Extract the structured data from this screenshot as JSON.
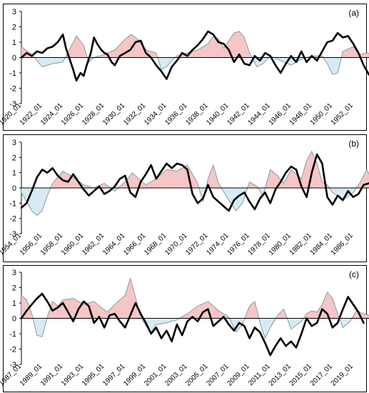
{
  "figure": {
    "panels": [
      "(a)",
      "(b)",
      "(c)"
    ]
  },
  "chart_data": [
    {
      "type": "area",
      "panel_label": "(a)",
      "ylim": [
        -3,
        3
      ],
      "yticks": [
        3,
        2,
        1,
        0,
        -1,
        -2,
        -3
      ],
      "xlim": [
        1920,
        1954
      ],
      "xtick_labels": [
        "1920_01",
        "1922_01",
        "1924_01",
        "1926_01",
        "1928_01",
        "1930_01",
        "1932_01",
        "1934_01",
        "1936_01",
        "1938_01",
        "1940_01",
        "1942_01",
        "1944_01",
        "1946_01",
        "1948_01",
        "1950_01",
        "1952_01"
      ],
      "xtick_values": [
        1920,
        1922,
        1924,
        1926,
        1928,
        1930,
        1932,
        1934,
        1936,
        1938,
        1940,
        1942,
        1944,
        1946,
        1948,
        1950,
        1952
      ],
      "series": [
        {
          "style": "shaded-area",
          "x": [
            1920,
            1921,
            1922,
            1923,
            1924,
            1924.7,
            1925.3,
            1926,
            1926.5,
            1927,
            1927.5,
            1928,
            1929,
            1930,
            1930.6,
            1931.2,
            1932,
            1933,
            1933.5,
            1934,
            1934.5,
            1935,
            1936,
            1937,
            1938,
            1938.5,
            1939,
            1939.5,
            1940,
            1940.5,
            1941,
            1941.5,
            1942,
            1942.7,
            1943.3,
            1944,
            1945,
            1946,
            1947,
            1948,
            1949,
            1949.5,
            1950,
            1950.5,
            1951,
            1952,
            1952.7,
            1953.3,
            1954
          ],
          "y": [
            0.7,
            0.2,
            -0.6,
            -0.4,
            -0.3,
            0.6,
            1.4,
            0.8,
            -0.3,
            0,
            0.1,
            0.2,
            0.5,
            1.2,
            1.5,
            1.2,
            0.5,
            0.3,
            -0.8,
            -0.6,
            -0.2,
            0.1,
            0.3,
            0.5,
            0.9,
            1.4,
            1.2,
            0.6,
            1.1,
            1.6,
            1.7,
            1.3,
            0.3,
            -0.6,
            -0.4,
            0.1,
            -0.2,
            -0.5,
            -0.1,
            0.1,
            0.1,
            -0.4,
            -1.1,
            -1,
            0.4,
            0.7,
            0.2,
            0.3,
            0.2
          ]
        },
        {
          "style": "bold-line",
          "x": [
            1920,
            1920.5,
            1921,
            1921.5,
            1922,
            1922.5,
            1923,
            1923.5,
            1924,
            1924.3,
            1924.7,
            1925,
            1925.3,
            1925.7,
            1926,
            1926.3,
            1926.7,
            1927,
            1927.3,
            1927.7,
            1928,
            1928.3,
            1928.7,
            1929,
            1929.5,
            1930,
            1930.5,
            1931,
            1931.5,
            1932,
            1932.5,
            1933,
            1933.5,
            1934,
            1934.5,
            1935,
            1935.5,
            1936,
            1936.5,
            1937,
            1937.5,
            1938,
            1938.5,
            1939,
            1939.5,
            1940,
            1940.5,
            1941,
            1941.5,
            1942,
            1942.5,
            1943,
            1943.5,
            1944,
            1944.5,
            1945,
            1945.5,
            1946,
            1946.5,
            1947,
            1947.5,
            1948,
            1948.5,
            1949,
            1949.5,
            1950,
            1950.5,
            1951,
            1951.5,
            1952,
            1952.5,
            1953,
            1953.5,
            1954
          ],
          "y": [
            0,
            0.3,
            0.1,
            0.4,
            0.3,
            0.6,
            0.7,
            1,
            1.5,
            0.6,
            -0.2,
            -0.8,
            -1.5,
            -1,
            -1.2,
            -0.5,
            0.3,
            1.3,
            0.9,
            0.5,
            0.3,
            0.2,
            -0.3,
            -0.5,
            0.1,
            0.3,
            0.5,
            1,
            1.1,
            0.3,
            0,
            -0.5,
            -0.9,
            -1.4,
            -0.6,
            -0.2,
            0.3,
            0.1,
            0.5,
            0.8,
            1.2,
            1.7,
            1.5,
            1,
            0.9,
            0.5,
            -0.3,
            0.2,
            -0.4,
            -0.5,
            0.1,
            -0.2,
            0.3,
            0.1,
            -0.5,
            -1,
            -0.4,
            0.1,
            -0.3,
            0.4,
            -0.3,
            0.1,
            -0.2,
            0.4,
            1,
            1.1,
            1.6,
            1.3,
            1.4,
            0.9,
            0.3,
            -0.5,
            -1.1,
            -1.5
          ]
        }
      ]
    },
    {
      "type": "area",
      "panel_label": "(b)",
      "ylim": [
        -3,
        3
      ],
      "yticks": [
        3,
        2,
        1,
        0,
        -1,
        -2,
        -3
      ],
      "xlim": [
        1954,
        1988
      ],
      "xtick_labels": [
        "1954_01",
        "1956_01",
        "1958_01",
        "1960_01",
        "1962_01",
        "1964_01",
        "1966_01",
        "1968_01",
        "1970_01",
        "1972_01",
        "1974_01",
        "1976_01",
        "1978_01",
        "1980_01",
        "1982_01",
        "1984_01",
        "1986_01"
      ],
      "xtick_values": [
        1954,
        1956,
        1958,
        1960,
        1962,
        1964,
        1966,
        1968,
        1970,
        1972,
        1974,
        1976,
        1978,
        1980,
        1982,
        1984,
        1986
      ],
      "series": [
        {
          "style": "shaded-area",
          "x": [
            1954,
            1955,
            1955.5,
            1956,
            1956.5,
            1957,
            1958,
            1959,
            1960,
            1961,
            1962,
            1963,
            1964,
            1964.7,
            1965.3,
            1966,
            1967,
            1968,
            1969,
            1970,
            1971,
            1971.5,
            1972,
            1972.5,
            1973,
            1974,
            1974.7,
            1975.3,
            1976,
            1976.7,
            1977.3,
            1978,
            1978.7,
            1979.3,
            1980,
            1981,
            1981.5,
            1982,
            1982.5,
            1983,
            1983.5,
            1984,
            1985,
            1986,
            1986.7,
            1987.3,
            1988
          ],
          "y": [
            -0.3,
            -1.5,
            -1.8,
            -1.5,
            -0.5,
            0.3,
            1.1,
            0.7,
            0.2,
            0,
            0.3,
            -0.2,
            0.4,
            1,
            0.6,
            0.2,
            0.6,
            1.2,
            1.1,
            1.5,
            0.3,
            -0.9,
            0.6,
            1.5,
            0.3,
            -0.8,
            -1.5,
            -1,
            0.4,
            0.1,
            -0.5,
            1.2,
            0.8,
            0.3,
            1.2,
            0.6,
            1.8,
            2.4,
            1.6,
            0.4,
            0.2,
            -0.3,
            -0.8,
            -0.3,
            0.4,
            1.2,
            0.3
          ]
        },
        {
          "style": "bold-line",
          "x": [
            1954,
            1954.5,
            1955,
            1955.5,
            1956,
            1956.5,
            1957,
            1957.5,
            1958,
            1958.5,
            1959,
            1959.5,
            1960,
            1960.5,
            1961,
            1961.5,
            1962,
            1962.5,
            1963,
            1963.5,
            1964,
            1964.5,
            1965,
            1965.5,
            1966,
            1966.5,
            1967,
            1967.5,
            1968,
            1968.5,
            1969,
            1969.5,
            1970,
            1970.5,
            1971,
            1971.5,
            1972,
            1972.5,
            1973,
            1973.5,
            1974,
            1974.5,
            1975,
            1975.5,
            1976,
            1976.5,
            1977,
            1977.5,
            1978,
            1978.5,
            1979,
            1979.5,
            1980,
            1980.5,
            1981,
            1981.5,
            1982,
            1982.5,
            1983,
            1983.5,
            1984,
            1984.5,
            1985,
            1985.5,
            1986,
            1986.5,
            1987,
            1987.5,
            1988
          ],
          "y": [
            -1.3,
            -1,
            -0.2,
            0.7,
            1.2,
            1,
            1.3,
            0.8,
            0.5,
            0.4,
            0.9,
            0.4,
            -0.1,
            -0.5,
            -0.2,
            0.1,
            -0.4,
            -0.2,
            0.1,
            0.6,
            0.8,
            -0.3,
            -0.6,
            0.4,
            0.9,
            1.5,
            0.6,
            1.1,
            1.6,
            1.3,
            1.6,
            1.5,
            1.2,
            -0.4,
            -1,
            -0.7,
            0.2,
            -0.6,
            -0.9,
            -1.2,
            -1.5,
            -0.8,
            -0.5,
            -0.3,
            -0.9,
            -1.4,
            -0.7,
            -0.3,
            -1,
            -0.1,
            0.4,
            1,
            1.4,
            1.2,
            0.1,
            -0.6,
            1,
            2.2,
            1.6,
            -0.6,
            -1.1,
            -0.5,
            -0.8,
            -0.2,
            -0.6,
            -0.4,
            0.2,
            0.3,
            0.5
          ]
        }
      ]
    },
    {
      "type": "area",
      "panel_label": "(c)",
      "ylim": [
        -3,
        3
      ],
      "yticks": [
        3,
        2,
        1,
        0,
        -1,
        -2,
        -3
      ],
      "xlim": [
        1987,
        2021
      ],
      "xtick_labels": [
        "1987_01",
        "1989_01",
        "1991_01",
        "1993_01",
        "1995_01",
        "1997_01",
        "1999_01",
        "2001_01",
        "2003_01",
        "2005_01",
        "2007_01",
        "2009_01",
        "2011_01",
        "2013_01",
        "2015_01",
        "2017_01",
        "2019_01"
      ],
      "xtick_values": [
        1987,
        1989,
        1991,
        1993,
        1995,
        1997,
        1999,
        2001,
        2003,
        2005,
        2007,
        2009,
        2011,
        2013,
        2015,
        2017,
        2019
      ],
      "series": [
        {
          "style": "shaded-area",
          "x": [
            1987,
            1987.5,
            1988,
            1988.5,
            1989,
            1989.5,
            1990,
            1990.5,
            1991,
            1992,
            1993,
            1994,
            1994.7,
            1995.3,
            1996,
            1996.5,
            1997,
            1997.5,
            1998,
            1998.5,
            1999,
            1999.5,
            2000,
            2001,
            2002,
            2003,
            2004,
            2005,
            2006,
            2007,
            2007.7,
            2008.3,
            2009,
            2009.5,
            2010,
            2010.5,
            2011,
            2011.7,
            2012.3,
            2013,
            2014,
            2014.5,
            2015,
            2015.5,
            2016,
            2016.5,
            2017,
            2017.5,
            2018,
            2018.7,
            2019.3,
            2020,
            2021
          ],
          "y": [
            1.5,
            1.2,
            0.3,
            -1.1,
            -1.2,
            0.1,
            1.1,
            0.8,
            1.2,
            1.3,
            0.9,
            1.1,
            0.7,
            0.4,
            0.9,
            1.2,
            1.5,
            2.6,
            1.4,
            0.1,
            -0.5,
            -0.9,
            -0.4,
            -0.3,
            -0.1,
            0.3,
            0.8,
            1.1,
            0.5,
            0.1,
            -0.9,
            -0.4,
            0.8,
            1.1,
            -0.3,
            -1.3,
            -0.6,
            0.2,
            0.6,
            -0.7,
            -0.2,
            0.3,
            0.5,
            0.4,
            0.9,
            1.7,
            1.3,
            0.3,
            -0.6,
            -0.2,
            0.5,
            0.3,
            0.1
          ]
        },
        {
          "style": "bold-line",
          "x": [
            1987,
            1987.5,
            1988,
            1988.5,
            1989,
            1989.5,
            1990,
            1990.5,
            1991,
            1991.5,
            1992,
            1992.5,
            1993,
            1993.5,
            1994,
            1994.5,
            1995,
            1995.5,
            1996,
            1996.5,
            1997,
            1997.5,
            1998,
            1998.5,
            1999,
            1999.5,
            2000,
            2000.5,
            2001,
            2001.5,
            2002,
            2002.5,
            2003,
            2003.5,
            2004,
            2004.5,
            2005,
            2005.5,
            2006,
            2006.5,
            2007,
            2007.5,
            2008,
            2008.5,
            2009,
            2009.5,
            2010,
            2010.5,
            2011,
            2011.5,
            2012,
            2012.5,
            2013,
            2013.5,
            2014,
            2014.5,
            2015,
            2015.5,
            2016,
            2016.5,
            2017,
            2017.5,
            2018,
            2018.5,
            2019,
            2019.5,
            2020
          ],
          "y": [
            0,
            0.5,
            0.9,
            1.3,
            1.6,
            1.1,
            0.5,
            0.7,
            1,
            0.4,
            -0.2,
            0.6,
            1.1,
            0.8,
            -0.3,
            0.1,
            -0.6,
            0.2,
            0.3,
            -0.2,
            -0.6,
            0.2,
            1,
            0.3,
            -0.3,
            -1,
            -0.6,
            -1.3,
            -0.8,
            -1.5,
            -0.4,
            -1.1,
            -0.2,
            0.1,
            -0.2,
            0.4,
            0.6,
            -0.5,
            -0.2,
            0.1,
            -0.4,
            -0.8,
            -0.3,
            -0.5,
            -1.3,
            -0.6,
            -0.9,
            -1.6,
            -2.4,
            -1.8,
            -1.3,
            -1.8,
            -1.5,
            -1.9,
            -1,
            0,
            -0.5,
            -0.3,
            0.6,
            0.3,
            -0.6,
            -0.3,
            0.6,
            1.4,
            0.9,
            0.4,
            -0.3
          ]
        }
      ]
    }
  ],
  "colors": {
    "positive_fill": "#f6c6c6",
    "negative_fill": "#d6ebf5",
    "shaded_outline": "#8a9a9f",
    "bold_line": "#000000",
    "frame": "#000000"
  }
}
